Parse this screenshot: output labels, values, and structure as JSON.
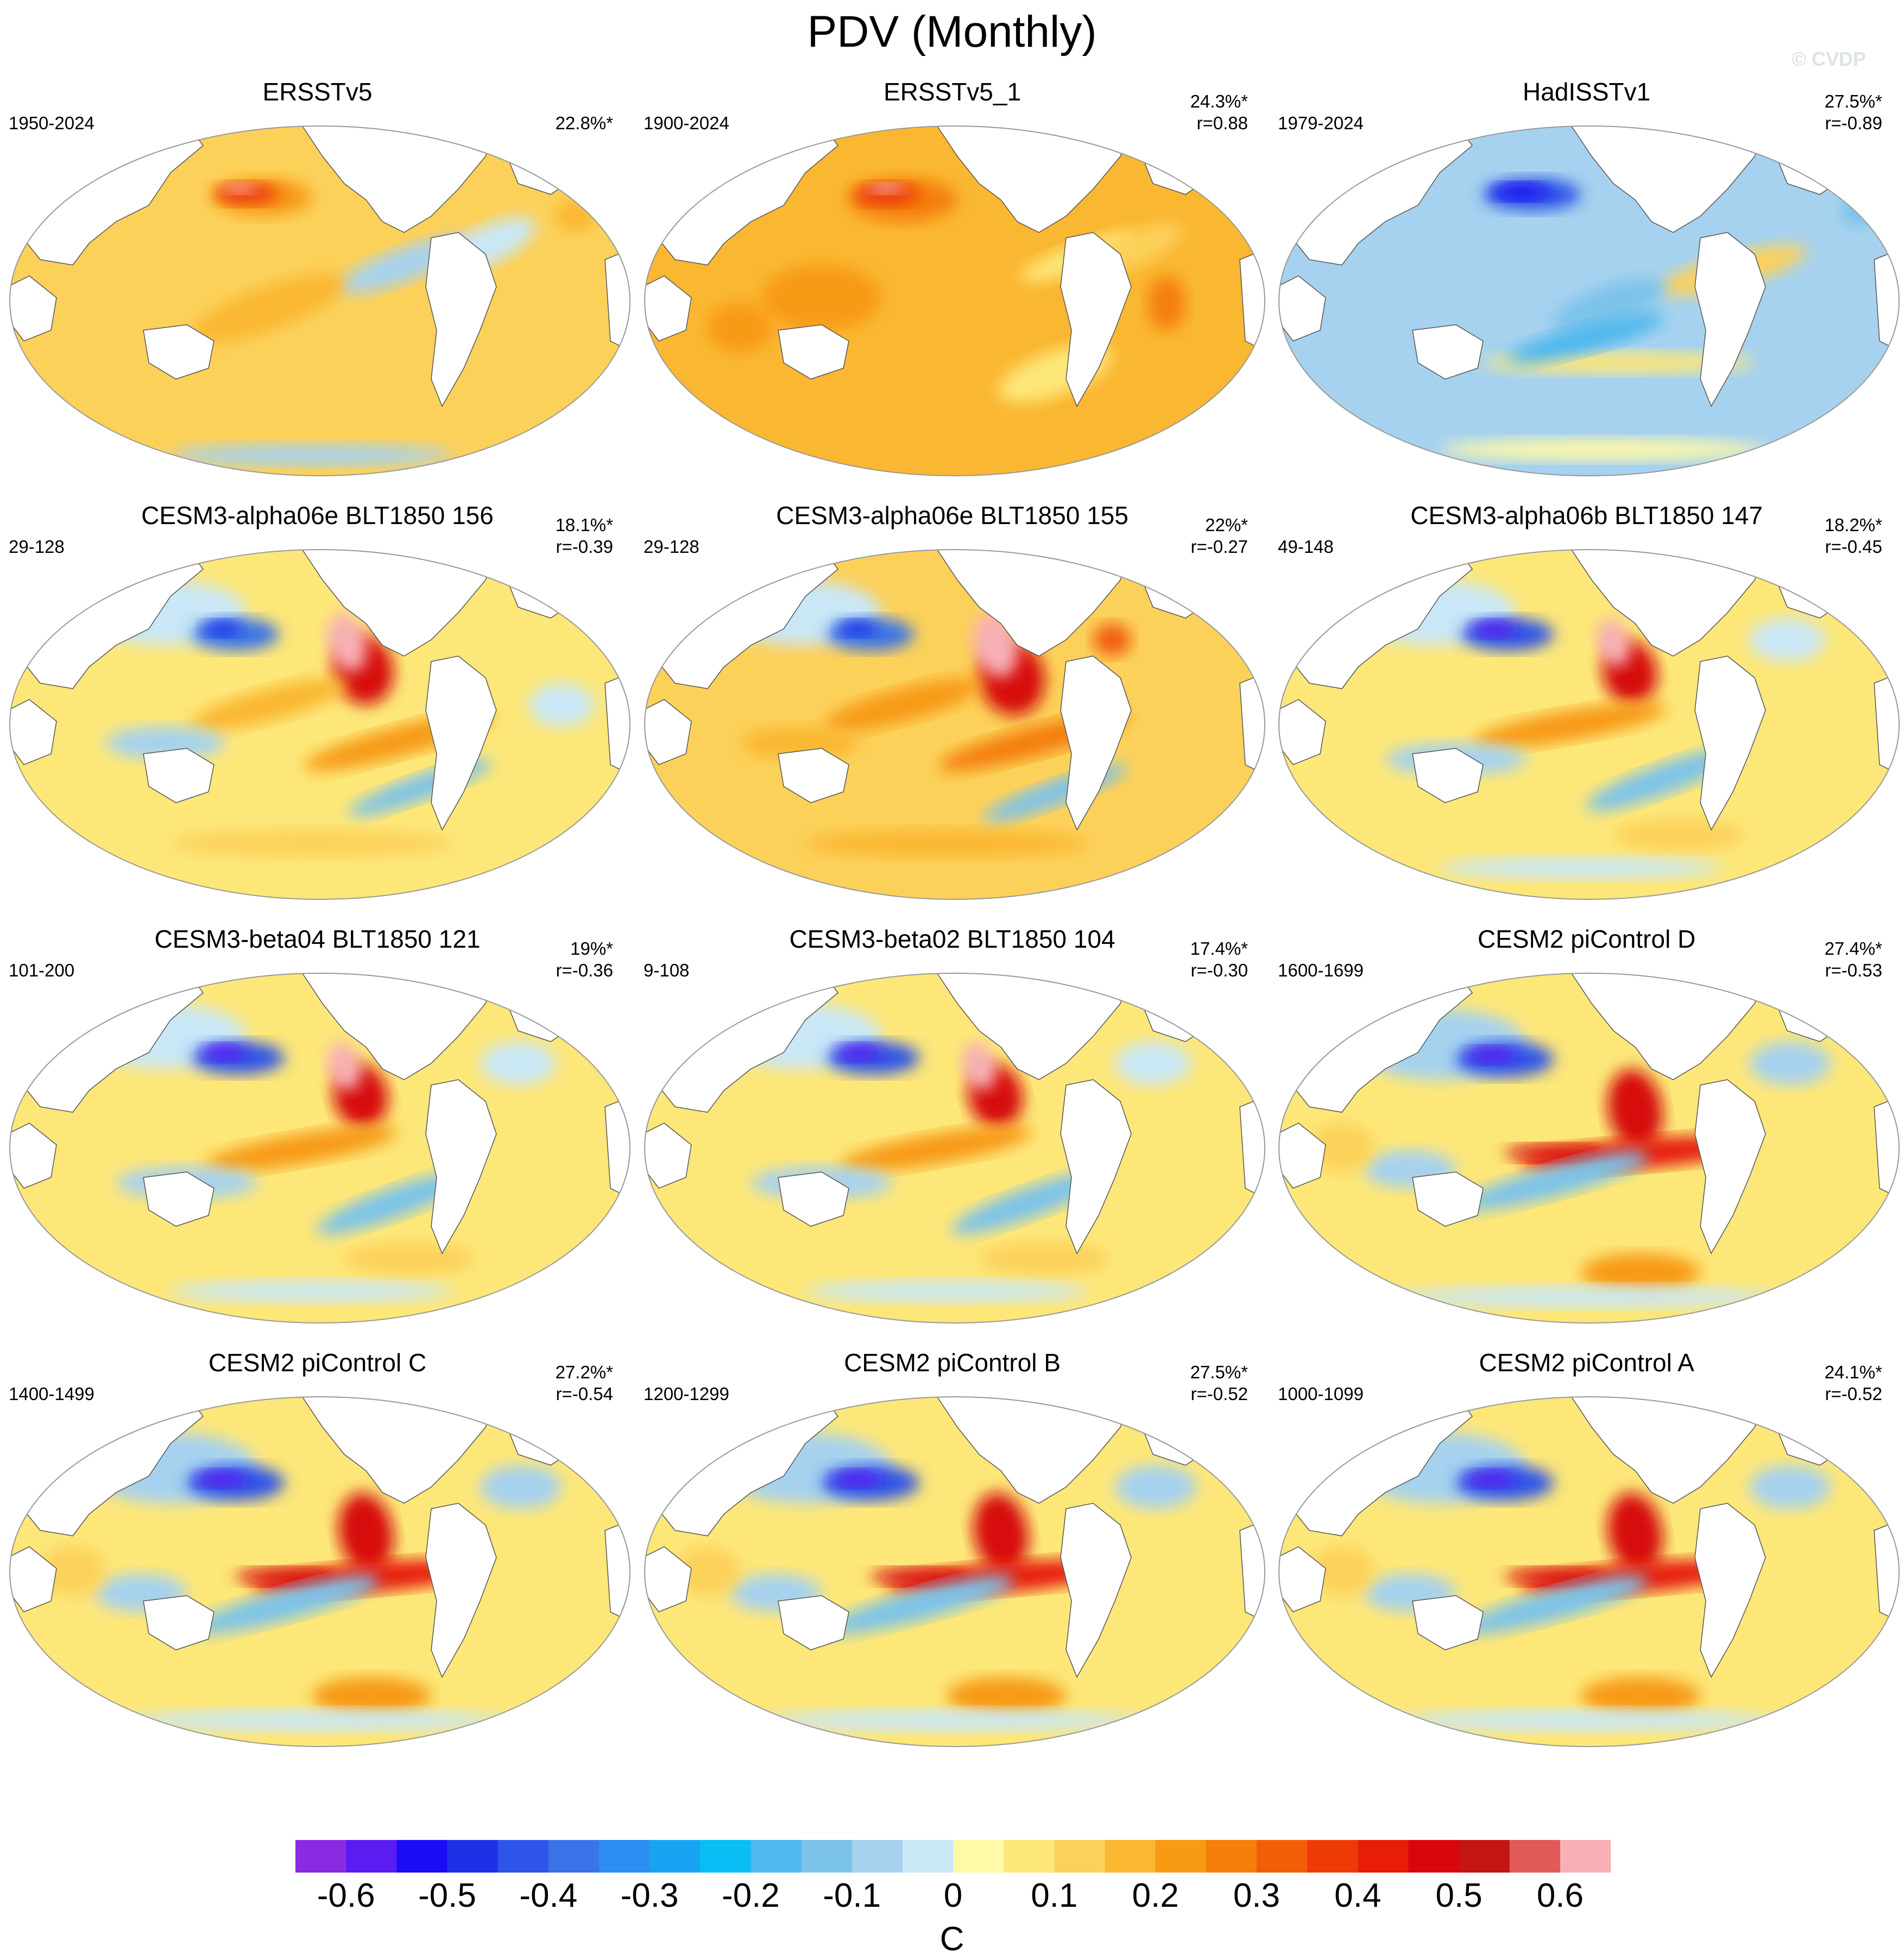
{
  "title": "PDV (Monthly)",
  "watermark": "© CVDP",
  "panels": [
    {
      "title": "ERSSTv5",
      "period": "1950-2024",
      "pct": "22.8%*",
      "r": "",
      "pattern": "obs_warm"
    },
    {
      "title": "ERSSTv5_1",
      "period": "1900-2024",
      "pct": "24.3%*",
      "r": "r=0.88",
      "pattern": "obs_warm2"
    },
    {
      "title": "HadISSTv1",
      "period": "1979-2024",
      "pct": "27.5%*",
      "r": "r=-0.89",
      "pattern": "obs_cold"
    },
    {
      "title": "CESM3-alpha06e BLT1850 156",
      "period": "29-128",
      "pct": "18.1%*",
      "r": "r=-0.39",
      "pattern": "model_a"
    },
    {
      "title": "CESM3-alpha06e BLT1850 155",
      "period": "29-128",
      "pct": "22%*",
      "r": "r=-0.27",
      "pattern": "model_a2"
    },
    {
      "title": "CESM3-alpha06b BLT1850 147",
      "period": "49-148",
      "pct": "18.2%*",
      "r": "r=-0.45",
      "pattern": "model_b"
    },
    {
      "title": "CESM3-beta04 BLT1850 121",
      "period": "101-200",
      "pct": "19%*",
      "r": "r=-0.36",
      "pattern": "model_b"
    },
    {
      "title": "CESM3-beta02 BLT1850 104",
      "period": "9-108",
      "pct": "17.4%*",
      "r": "r=-0.30",
      "pattern": "model_b"
    },
    {
      "title": "CESM2 piControl D",
      "period": "1600-1699",
      "pct": "27.4%*",
      "r": "r=-0.53",
      "pattern": "model_c"
    },
    {
      "title": "CESM2 piControl C",
      "period": "1400-1499",
      "pct": "27.2%*",
      "r": "r=-0.54",
      "pattern": "model_c"
    },
    {
      "title": "CESM2 piControl B",
      "period": "1200-1299",
      "pct": "27.5%*",
      "r": "r=-0.52",
      "pattern": "model_c"
    },
    {
      "title": "CESM2 piControl A",
      "period": "1000-1099",
      "pct": "24.1%*",
      "r": "r=-0.52",
      "pattern": "model_c"
    }
  ],
  "colorbar": {
    "units": "C",
    "labels": [
      "-0.6",
      "-0.5",
      "-0.4",
      "-0.3",
      "-0.2",
      "-0.1",
      "0",
      "0.1",
      "0.2",
      "0.3",
      "0.4",
      "0.5",
      "0.6"
    ],
    "colors": [
      "#8a2be2",
      "#5a1cf0",
      "#1a0df5",
      "#1e30e6",
      "#2f55e8",
      "#3b73e8",
      "#2b8ef0",
      "#1aa3f2",
      "#08bef5",
      "#4fb8ee",
      "#7cc3ea",
      "#a6d2ef",
      "#c9e7f6",
      "#fff9a8",
      "#fde779",
      "#fcd15a",
      "#fab732",
      "#f79a14",
      "#f57f0a",
      "#f25e08",
      "#ee3a07",
      "#e71d08",
      "#d7070b",
      "#c41414",
      "#e05a5a",
      "#f7b0b5"
    ]
  }
}
